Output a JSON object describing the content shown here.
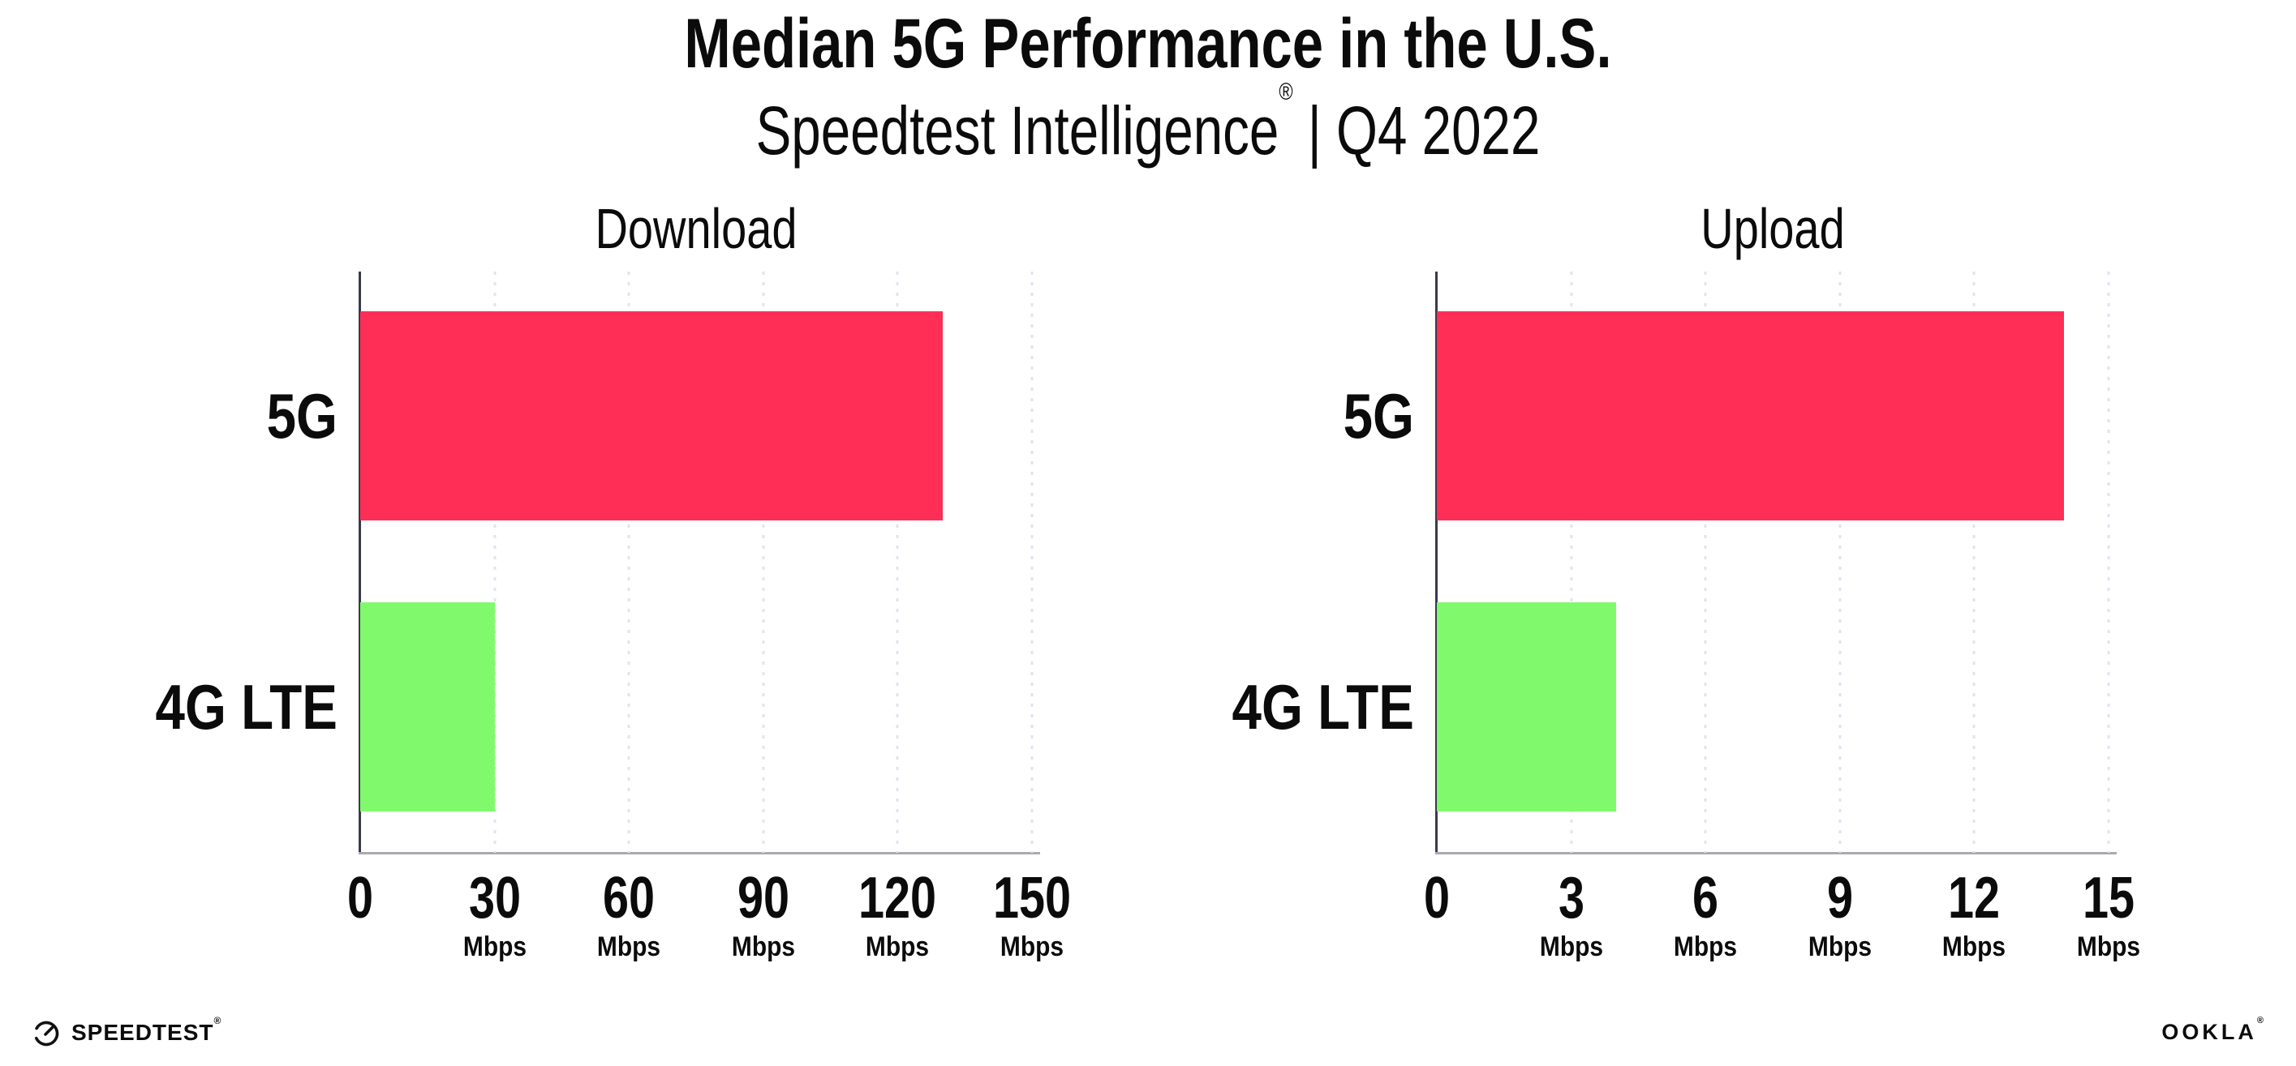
{
  "header": {
    "title": "Median 5G Performance in the U.S.",
    "subtitle": {
      "brand": "Speedtest Intelligence",
      "reg": "®",
      "rest": " | Q4 2022"
    }
  },
  "chart_data": [
    {
      "type": "bar",
      "orientation": "horizontal",
      "title": "Download",
      "categories": [
        "5G",
        "4G LTE"
      ],
      "values": [
        130,
        30
      ],
      "unit": "Mbps",
      "xlim": [
        0,
        150
      ],
      "xticks": [
        0,
        30,
        60,
        90,
        120,
        150
      ],
      "bar_colors": [
        "#FF2E56",
        "#80FA6C"
      ],
      "grid": "vertical dotted gridlines at each tick",
      "legend": "none"
    },
    {
      "type": "bar",
      "orientation": "horizontal",
      "title": "Upload",
      "categories": [
        "5G",
        "4G LTE"
      ],
      "values": [
        14,
        4
      ],
      "unit": "Mbps",
      "xlim": [
        0,
        15
      ],
      "xticks": [
        0,
        3,
        6,
        9,
        12,
        15
      ],
      "bar_colors": [
        "#FF2E56",
        "#80FA6C"
      ],
      "grid": "vertical dotted gridlines at each tick",
      "legend": "none"
    }
  ],
  "colors": {
    "bar_5g": "#FF2E56",
    "bar_4g_lte": "#80FA6C",
    "gridline": "#E3E3F0",
    "y_axis": "#3A3A4E",
    "x_axis": "#A9A9B2",
    "text": "#0B0B0C",
    "background": "#FFFFFF"
  },
  "footer": {
    "speedtest_label": "SPEEDTEST",
    "speedtest_reg": "®",
    "ookla_label": "OOKLA",
    "ookla_reg": "®"
  }
}
